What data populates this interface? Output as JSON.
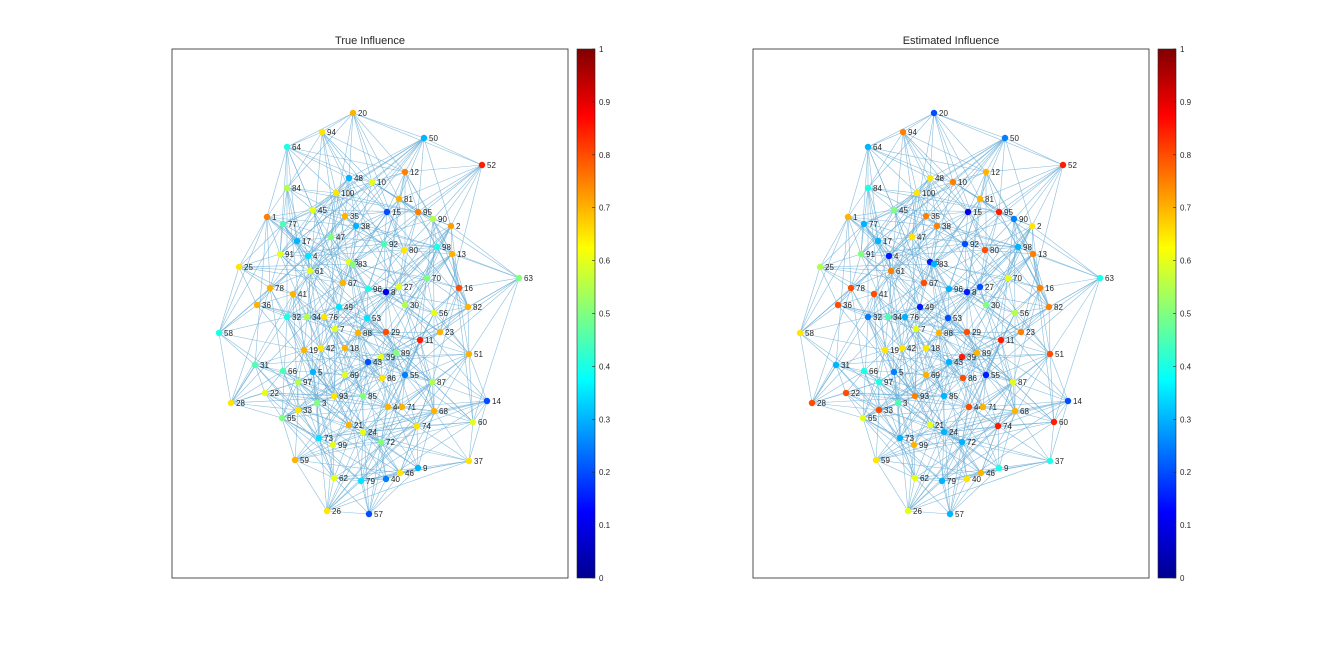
{
  "figure": {
    "colorbar_ticks": [
      "0",
      "0.1",
      "0.2",
      "0.3",
      "0.4",
      "0.5",
      "0.6",
      "0.7",
      "0.8",
      "0.9",
      "1"
    ]
  },
  "chart_data": [
    {
      "type": "network",
      "title": "True Influence",
      "colormap": "jet",
      "clim": [
        0,
        1
      ],
      "nodes": [
        {
          "id": "1",
          "value": 0.75
        },
        {
          "id": "2",
          "value": 0.72
        },
        {
          "id": "3",
          "value": 0.5
        },
        {
          "id": "4",
          "value": 0.35
        },
        {
          "id": "5",
          "value": 0.3
        },
        {
          "id": "6",
          "value": 0.6
        },
        {
          "id": "7",
          "value": 0.6
        },
        {
          "id": "8",
          "value": 0.1
        },
        {
          "id": "9",
          "value": 0.3
        },
        {
          "id": "10",
          "value": 0.6
        },
        {
          "id": "11",
          "value": 0.85
        },
        {
          "id": "12",
          "value": 0.75
        },
        {
          "id": "13",
          "value": 0.7
        },
        {
          "id": "14",
          "value": 0.2
        },
        {
          "id": "15",
          "value": 0.2
        },
        {
          "id": "16",
          "value": 0.8
        },
        {
          "id": "17",
          "value": 0.3
        },
        {
          "id": "18",
          "value": 0.7
        },
        {
          "id": "19",
          "value": 0.7
        },
        {
          "id": "20",
          "value": 0.7
        },
        {
          "id": "21",
          "value": 0.7
        },
        {
          "id": "22",
          "value": 0.6
        },
        {
          "id": "23",
          "value": 0.7
        },
        {
          "id": "24",
          "value": 0.6
        },
        {
          "id": "25",
          "value": 0.65
        },
        {
          "id": "26",
          "value": 0.65
        },
        {
          "id": "27",
          "value": 0.6
        },
        {
          "id": "28",
          "value": 0.65
        },
        {
          "id": "29",
          "value": 0.8
        },
        {
          "id": "30",
          "value": 0.55
        },
        {
          "id": "31",
          "value": 0.45
        },
        {
          "id": "32",
          "value": 0.4
        },
        {
          "id": "33",
          "value": 0.65
        },
        {
          "id": "34",
          "value": 0.55
        },
        {
          "id": "35",
          "value": 0.7
        },
        {
          "id": "36",
          "value": 0.7
        },
        {
          "id": "37",
          "value": 0.65
        },
        {
          "id": "38",
          "value": 0.3
        },
        {
          "id": "39",
          "value": 0.6
        },
        {
          "id": "40",
          "value": 0.25
        },
        {
          "id": "41",
          "value": 0.7
        },
        {
          "id": "42",
          "value": 0.65
        },
        {
          "id": "43",
          "value": 0.2
        },
        {
          "id": "44",
          "value": 0.7
        },
        {
          "id": "45",
          "value": 0.6
        },
        {
          "id": "46",
          "value": 0.65
        },
        {
          "id": "47",
          "value": 0.5
        },
        {
          "id": "48",
          "value": 0.3
        },
        {
          "id": "49",
          "value": 0.35
        },
        {
          "id": "50",
          "value": 0.3
        },
        {
          "id": "51",
          "value": 0.7
        },
        {
          "id": "52",
          "value": 0.85
        },
        {
          "id": "53",
          "value": 0.35
        },
        {
          "id": "55",
          "value": 0.25
        },
        {
          "id": "56",
          "value": 0.6
        },
        {
          "id": "57",
          "value": 0.2
        },
        {
          "id": "58",
          "value": 0.4
        },
        {
          "id": "59",
          "value": 0.7
        },
        {
          "id": "60",
          "value": 0.6
        },
        {
          "id": "61",
          "value": 0.6
        },
        {
          "id": "62",
          "value": 0.6
        },
        {
          "id": "63",
          "value": 0.5
        },
        {
          "id": "64",
          "value": 0.4
        },
        {
          "id": "65",
          "value": 0.5
        },
        {
          "id": "66",
          "value": 0.45
        },
        {
          "id": "67",
          "value": 0.7
        },
        {
          "id": "68",
          "value": 0.7
        },
        {
          "id": "69",
          "value": 0.6
        },
        {
          "id": "70",
          "value": 0.5
        },
        {
          "id": "71",
          "value": 0.7
        },
        {
          "id": "72",
          "value": 0.5
        },
        {
          "id": "73",
          "value": 0.35
        },
        {
          "id": "74",
          "value": 0.65
        },
        {
          "id": "76",
          "value": 0.65
        },
        {
          "id": "77",
          "value": 0.45
        },
        {
          "id": "78",
          "value": 0.7
        },
        {
          "id": "79",
          "value": 0.35
        },
        {
          "id": "80",
          "value": 0.65
        },
        {
          "id": "81",
          "value": 0.7
        },
        {
          "id": "82",
          "value": 0.7
        },
        {
          "id": "83",
          "value": 0.5
        },
        {
          "id": "84",
          "value": 0.55
        },
        {
          "id": "85",
          "value": 0.5
        },
        {
          "id": "86",
          "value": 0.65
        },
        {
          "id": "87",
          "value": 0.55
        },
        {
          "id": "88",
          "value": 0.7
        },
        {
          "id": "89",
          "value": 0.5
        },
        {
          "id": "90",
          "value": 0.55
        },
        {
          "id": "91",
          "value": 0.6
        },
        {
          "id": "92",
          "value": 0.45
        },
        {
          "id": "93",
          "value": 0.65
        },
        {
          "id": "94",
          "value": 0.65
        },
        {
          "id": "95",
          "value": 0.75
        },
        {
          "id": "96",
          "value": 0.4
        },
        {
          "id": "97",
          "value": 0.55
        },
        {
          "id": "98",
          "value": 0.4
        },
        {
          "id": "99",
          "value": 0.6
        },
        {
          "id": "100",
          "value": 0.65
        }
      ]
    },
    {
      "type": "network",
      "title": "Estimated Influence",
      "colormap": "jet",
      "clim": [
        0,
        1
      ],
      "nodes": [
        {
          "id": "1",
          "value": 0.7
        },
        {
          "id": "2",
          "value": 0.65
        },
        {
          "id": "3",
          "value": 0.45
        },
        {
          "id": "4",
          "value": 0.15
        },
        {
          "id": "5",
          "value": 0.25
        },
        {
          "id": "6",
          "value": 0.15
        },
        {
          "id": "7",
          "value": 0.6
        },
        {
          "id": "8",
          "value": 0.15
        },
        {
          "id": "9",
          "value": 0.4
        },
        {
          "id": "10",
          "value": 0.75
        },
        {
          "id": "11",
          "value": 0.85
        },
        {
          "id": "12",
          "value": 0.7
        },
        {
          "id": "13",
          "value": 0.75
        },
        {
          "id": "14",
          "value": 0.2
        },
        {
          "id": "15",
          "value": 0.1
        },
        {
          "id": "16",
          "value": 0.75
        },
        {
          "id": "17",
          "value": 0.3
        },
        {
          "id": "18",
          "value": 0.65
        },
        {
          "id": "19",
          "value": 0.65
        },
        {
          "id": "20",
          "value": 0.2
        },
        {
          "id": "21",
          "value": 0.6
        },
        {
          "id": "22",
          "value": 0.8
        },
        {
          "id": "23",
          "value": 0.75
        },
        {
          "id": "24",
          "value": 0.3
        },
        {
          "id": "25",
          "value": 0.55
        },
        {
          "id": "26",
          "value": 0.6
        },
        {
          "id": "27",
          "value": 0.2
        },
        {
          "id": "28",
          "value": 0.8
        },
        {
          "id": "29",
          "value": 0.8
        },
        {
          "id": "30",
          "value": 0.5
        },
        {
          "id": "31",
          "value": 0.3
        },
        {
          "id": "32",
          "value": 0.25
        },
        {
          "id": "33",
          "value": 0.8
        },
        {
          "id": "34",
          "value": 0.45
        },
        {
          "id": "35",
          "value": 0.75
        },
        {
          "id": "36",
          "value": 0.8
        },
        {
          "id": "37",
          "value": 0.4
        },
        {
          "id": "38",
          "value": 0.75
        },
        {
          "id": "39",
          "value": 0.85
        },
        {
          "id": "40",
          "value": 0.65
        },
        {
          "id": "41",
          "value": 0.8
        },
        {
          "id": "42",
          "value": 0.65
        },
        {
          "id": "43",
          "value": 0.3
        },
        {
          "id": "44",
          "value": 0.8
        },
        {
          "id": "45",
          "value": 0.5
        },
        {
          "id": "46",
          "value": 0.7
        },
        {
          "id": "47",
          "value": 0.65
        },
        {
          "id": "48",
          "value": 0.65
        },
        {
          "id": "49",
          "value": 0.15
        },
        {
          "id": "50",
          "value": 0.25
        },
        {
          "id": "51",
          "value": 0.8
        },
        {
          "id": "52",
          "value": 0.85
        },
        {
          "id": "53",
          "value": 0.2
        },
        {
          "id": "55",
          "value": 0.15
        },
        {
          "id": "56",
          "value": 0.55
        },
        {
          "id": "57",
          "value": 0.3
        },
        {
          "id": "58",
          "value": 0.65
        },
        {
          "id": "59",
          "value": 0.65
        },
        {
          "id": "60",
          "value": 0.85
        },
        {
          "id": "61",
          "value": 0.75
        },
        {
          "id": "62",
          "value": 0.6
        },
        {
          "id": "63",
          "value": 0.4
        },
        {
          "id": "64",
          "value": 0.3
        },
        {
          "id": "65",
          "value": 0.6
        },
        {
          "id": "66",
          "value": 0.4
        },
        {
          "id": "67",
          "value": 0.8
        },
        {
          "id": "68",
          "value": 0.7
        },
        {
          "id": "69",
          "value": 0.7
        },
        {
          "id": "70",
          "value": 0.6
        },
        {
          "id": "71",
          "value": 0.7
        },
        {
          "id": "72",
          "value": 0.3
        },
        {
          "id": "73",
          "value": 0.3
        },
        {
          "id": "74",
          "value": 0.85
        },
        {
          "id": "76",
          "value": 0.3
        },
        {
          "id": "77",
          "value": 0.3
        },
        {
          "id": "78",
          "value": 0.8
        },
        {
          "id": "79",
          "value": 0.3
        },
        {
          "id": "80",
          "value": 0.8
        },
        {
          "id": "81",
          "value": 0.7
        },
        {
          "id": "82",
          "value": 0.75
        },
        {
          "id": "83",
          "value": 0.3
        },
        {
          "id": "84",
          "value": 0.4
        },
        {
          "id": "85",
          "value": 0.3
        },
        {
          "id": "86",
          "value": 0.8
        },
        {
          "id": "87",
          "value": 0.6
        },
        {
          "id": "88",
          "value": 0.7
        },
        {
          "id": "89",
          "value": 0.7
        },
        {
          "id": "90",
          "value": 0.25
        },
        {
          "id": "91",
          "value": 0.5
        },
        {
          "id": "92",
          "value": 0.2
        },
        {
          "id": "93",
          "value": 0.75
        },
        {
          "id": "94",
          "value": 0.75
        },
        {
          "id": "95",
          "value": 0.85
        },
        {
          "id": "96",
          "value": 0.3
        },
        {
          "id": "97",
          "value": 0.4
        },
        {
          "id": "98",
          "value": 0.3
        },
        {
          "id": "99",
          "value": 0.7
        },
        {
          "id": "100",
          "value": 0.65
        }
      ]
    }
  ]
}
